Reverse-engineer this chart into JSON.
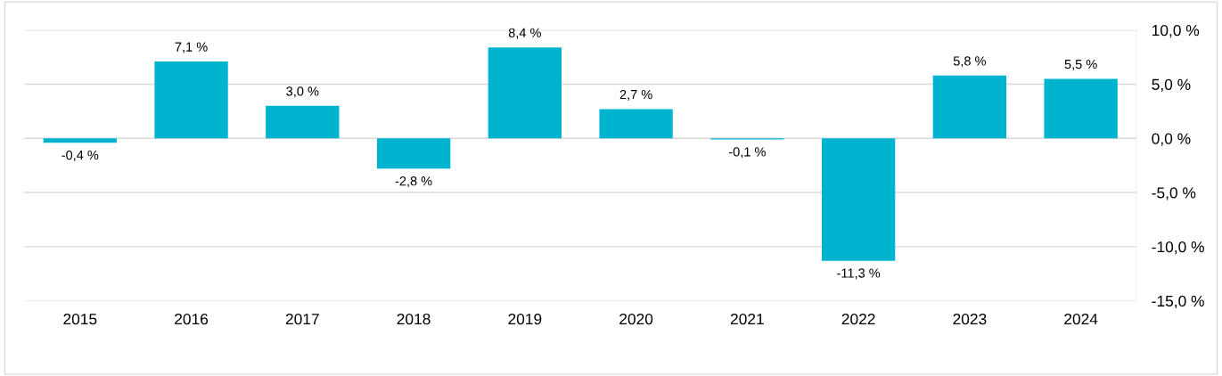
{
  "chart_data": {
    "type": "bar",
    "categories": [
      "2015",
      "2016",
      "2017",
      "2018",
      "2019",
      "2020",
      "2021",
      "2022",
      "2023",
      "2024"
    ],
    "series": [
      {
        "color": "#00b4d0",
        "values": [
          -0.4,
          7.1,
          3.0,
          -2.8,
          8.4,
          2.7,
          -0.1,
          -11.3,
          5.8,
          5.5
        ],
        "value_labels": [
          "-0,4 %",
          "7,1 %",
          "3,0 %",
          "-2,8 %",
          "8,4 %",
          "2,7 %",
          "-0,1 %",
          "-11,3 %",
          "5,8 %",
          "5,5 %"
        ]
      }
    ],
    "ylim": [
      -15,
      10
    ],
    "yticks": [
      {
        "value": -15,
        "label": "-15,0 %"
      },
      {
        "value": -10,
        "label": "-10,0 %"
      },
      {
        "value": -5,
        "label": "-5,0 %"
      },
      {
        "value": 0,
        "label": "0,0 %"
      },
      {
        "value": 5,
        "label": "5,0 %"
      },
      {
        "value": 10,
        "label": "10,0 %"
      }
    ],
    "grid": "y",
    "legend": false
  }
}
